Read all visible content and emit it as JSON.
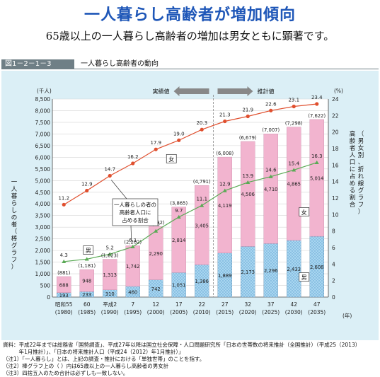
{
  "title": "一人暮らし高齢者が増加傾向",
  "subtitle": "65歳以上の一人暮らし高齢者の増加は男女ともに顕著です。",
  "figure": {
    "number": "図1－2－1－3",
    "title": "一人暮らし高齢者の動向"
  },
  "chart_data": {
    "type": "bar",
    "left_axis": {
      "unit": "(千人)",
      "label": "一人暮らしの者（棒グラフ）",
      "ticks": [
        "0",
        "500",
        "1,000",
        "1,500",
        "2,000",
        "2,500",
        "3,000",
        "3,500",
        "4,000",
        "4,500",
        "5,000",
        "5,500",
        "6,000",
        "6,500",
        "7,000",
        "7,500",
        "8,000",
        "8,500"
      ],
      "range": [
        0,
        8500
      ]
    },
    "right_axis": {
      "unit": "(%)",
      "label": "高齢者人口に占める割合（男女別、折れ線グラフ）",
      "ticks": [
        "0",
        "2",
        "4",
        "6",
        "8",
        "10",
        "12",
        "14",
        "16",
        "18",
        "20",
        "22",
        "24"
      ],
      "range": [
        0,
        24
      ]
    },
    "x_unit": "(年)",
    "categories": [
      {
        "era": "昭和55",
        "year": "(1980)"
      },
      {
        "era": "60",
        "year": "(1985)"
      },
      {
        "era": "平成2",
        "year": "(1990)"
      },
      {
        "era": "7",
        "year": "(1995)"
      },
      {
        "era": "12",
        "year": "(2000)"
      },
      {
        "era": "17",
        "year": "(2005)"
      },
      {
        "era": "22",
        "year": "(2010)"
      },
      {
        "era": "27",
        "year": "(2015)"
      },
      {
        "era": "32",
        "year": "(2020)"
      },
      {
        "era": "37",
        "year": "(2025)"
      },
      {
        "era": "42",
        "year": "(2030)"
      },
      {
        "era": "47",
        "year": "(2035)"
      }
    ],
    "series": [
      {
        "name": "男",
        "kind": "bar",
        "color": "#9fd0ee",
        "values": [
          193,
          233,
          310,
          460,
          742,
          1051,
          1386,
          1889,
          2173,
          2296,
          2433,
          2608
        ],
        "labels": [
          "193",
          "233",
          "310",
          "460",
          "742",
          "1,051",
          "1,386",
          "1,889",
          "2,173",
          "2,296",
          "2,433",
          "2,608"
        ]
      },
      {
        "name": "女",
        "kind": "bar",
        "color": "#f2b4cf",
        "values": [
          688,
          948,
          1313,
          1742,
          2290,
          2814,
          3405,
          4119,
          4506,
          4710,
          4865,
          5014
        ],
        "labels": [
          "688",
          "948",
          "1,313",
          "1,742",
          "2,290",
          "2,814",
          "3,405",
          "4,119",
          "4,506",
          "4,710",
          "4,865",
          "5,014"
        ]
      },
      {
        "name": "女",
        "kind": "line",
        "axis": "right",
        "color": "#e04f2e",
        "values": [
          11.2,
          12.9,
          14.7,
          16.2,
          17.9,
          19.0,
          20.3,
          21.3,
          21.9,
          22.6,
          23.1,
          23.4
        ],
        "labels": [
          "11.2",
          "12.9",
          "14.7",
          "16.2",
          "17.9",
          "19.0",
          "20.3",
          "21.3",
          "21.9",
          "22.6",
          "23.1",
          "23.4"
        ]
      },
      {
        "name": "男",
        "kind": "line",
        "axis": "right",
        "color": "#5aaa55",
        "values": [
          4.3,
          4.6,
          5.2,
          6.1,
          8.0,
          9.7,
          11.1,
          12.9,
          13.9,
          14.6,
          15.4,
          16.3
        ],
        "labels": [
          "4.3",
          "4.6",
          "5.2",
          "6.1",
          "8.0",
          "9.7",
          "11.1",
          "12.9",
          "13.9",
          "14.6",
          "15.4",
          "16.3"
        ]
      }
    ],
    "totals": [
      881,
      1181,
      1623,
      2202,
      3032,
      3865,
      4791,
      6008,
      6679,
      7007,
      7298,
      7622
    ],
    "total_labels": [
      "(881)",
      "(1,181)",
      "(1,623)",
      "(2,202)",
      "(3,032)",
      "(3,865)",
      "(4,791)",
      "(6,008)",
      "(6,679)",
      "(7,007)",
      "(7,298)",
      "(7,622)"
    ],
    "projection_start_index": 7,
    "annotations": {
      "actual": "実績値",
      "projected": "推計値",
      "callout": [
        "一人暮らしの者の",
        "高齢者人口に",
        "占める割合"
      ],
      "female_line_tag": "女",
      "male_line_tag": "男",
      "female_bar_tag": "女",
      "male_bar_tag": "男"
    },
    "grid": true
  },
  "notes": [
    "資料：平成22年までは総務省「国勢調査」、平成27年以降は国立社会保障・人口問題研究所「日本の世帯数の将来推計（全国推計）（平成25（2013）",
    "　　　年1月推計）」、「日本の将来推計人口（平成24（2012）年1月推計）」",
    "（注1）「一人暮らし」とは、上記の調査・推計における「単独世帯」のことを指す。",
    "（注2）棒グラフ上の（ ）内は65歳以上の一人暮らし高齢者の男女計",
    "（注3）四捨五入のため合計は必ずしも一致しない。"
  ]
}
